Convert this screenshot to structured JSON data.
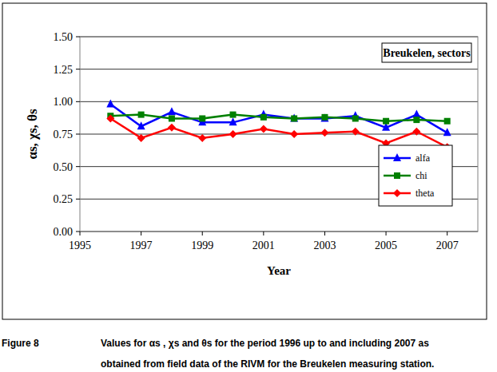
{
  "chart_data": {
    "type": "line",
    "title": "Breukelen, sectors",
    "x_label": "Year",
    "y_label": "αs, χs, θs",
    "x": [
      1996,
      1997,
      1998,
      1999,
      2000,
      2001,
      2002,
      2003,
      2004,
      2005,
      2006,
      2007
    ],
    "series": [
      {
        "name": "alfa",
        "color": "#0000ff",
        "marker": "triangle",
        "values": [
          0.98,
          0.81,
          0.92,
          0.84,
          0.84,
          0.9,
          0.87,
          0.87,
          0.89,
          0.8,
          0.9,
          0.76
        ]
      },
      {
        "name": "chi",
        "color": "#008000",
        "marker": "square",
        "values": [
          0.89,
          0.9,
          0.87,
          0.87,
          0.9,
          0.88,
          0.87,
          0.88,
          0.87,
          0.85,
          0.86,
          0.85
        ]
      },
      {
        "name": "theta",
        "color": "#ff0000",
        "marker": "diamond",
        "values": [
          0.87,
          0.72,
          0.8,
          0.72,
          0.75,
          0.79,
          0.75,
          0.76,
          0.77,
          0.68,
          0.77,
          0.65
        ]
      }
    ],
    "xlim": [
      1995,
      2008
    ],
    "xticks": [
      1995,
      1997,
      1999,
      2001,
      2003,
      2005,
      2007
    ],
    "ylim": [
      0,
      1.5
    ],
    "yticks": [
      {
        "value": 0,
        "label": "0.00"
      },
      {
        "value": 0.25,
        "label": "0.25"
      },
      {
        "value": 0.5,
        "label": "0.50"
      },
      {
        "value": 0.75,
        "label": "0.75"
      },
      {
        "value": 1,
        "label": "1.00"
      },
      {
        "value": 1.25,
        "label": "1.25"
      },
      {
        "value": 1.5,
        "label": "1.50"
      }
    ],
    "grid": true,
    "legend": "bottom-right",
    "caption": [
      "Figure 8",
      "Values for αs , χs and θs for the period 1996 up to and including 2007 as",
      "obtained from field data of the RIVM for the Breukelen measuring station."
    ]
  }
}
